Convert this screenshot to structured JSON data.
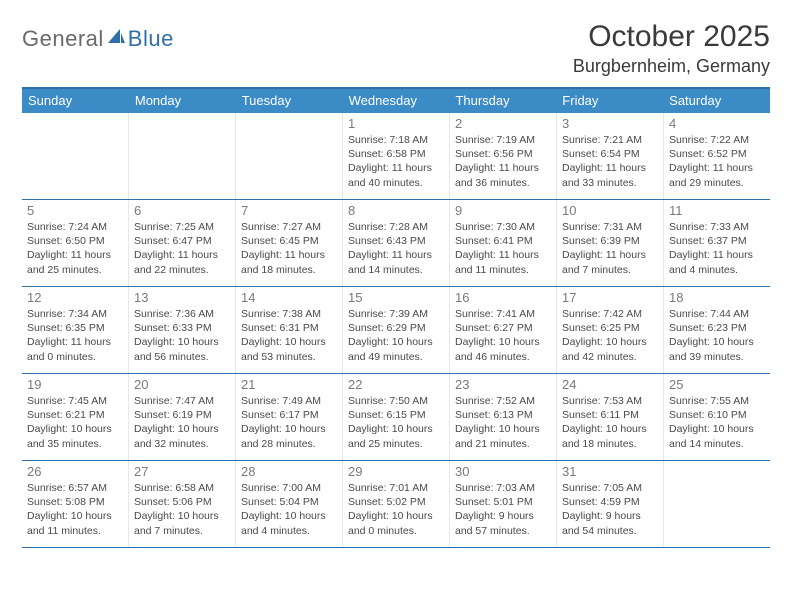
{
  "logo": {
    "part1": "General",
    "part2": "Blue"
  },
  "title": "October 2025",
  "location": "Burgbernheim, Germany",
  "colors": {
    "header_bg": "#3b8bc7",
    "header_text": "#ffffff",
    "border": "#2f6fab",
    "daynum": "#7a7a7a",
    "body_text": "#4a4a4a",
    "logo_gray": "#6a6a6a",
    "logo_blue": "#2f6fab"
  },
  "day_headers": [
    "Sunday",
    "Monday",
    "Tuesday",
    "Wednesday",
    "Thursday",
    "Friday",
    "Saturday"
  ],
  "weeks": [
    [
      null,
      null,
      null,
      {
        "n": "1",
        "sr": "Sunrise: 7:18 AM",
        "ss": "Sunset: 6:58 PM",
        "d1": "Daylight: 11 hours",
        "d2": "and 40 minutes."
      },
      {
        "n": "2",
        "sr": "Sunrise: 7:19 AM",
        "ss": "Sunset: 6:56 PM",
        "d1": "Daylight: 11 hours",
        "d2": "and 36 minutes."
      },
      {
        "n": "3",
        "sr": "Sunrise: 7:21 AM",
        "ss": "Sunset: 6:54 PM",
        "d1": "Daylight: 11 hours",
        "d2": "and 33 minutes."
      },
      {
        "n": "4",
        "sr": "Sunrise: 7:22 AM",
        "ss": "Sunset: 6:52 PM",
        "d1": "Daylight: 11 hours",
        "d2": "and 29 minutes."
      }
    ],
    [
      {
        "n": "5",
        "sr": "Sunrise: 7:24 AM",
        "ss": "Sunset: 6:50 PM",
        "d1": "Daylight: 11 hours",
        "d2": "and 25 minutes."
      },
      {
        "n": "6",
        "sr": "Sunrise: 7:25 AM",
        "ss": "Sunset: 6:47 PM",
        "d1": "Daylight: 11 hours",
        "d2": "and 22 minutes."
      },
      {
        "n": "7",
        "sr": "Sunrise: 7:27 AM",
        "ss": "Sunset: 6:45 PM",
        "d1": "Daylight: 11 hours",
        "d2": "and 18 minutes."
      },
      {
        "n": "8",
        "sr": "Sunrise: 7:28 AM",
        "ss": "Sunset: 6:43 PM",
        "d1": "Daylight: 11 hours",
        "d2": "and 14 minutes."
      },
      {
        "n": "9",
        "sr": "Sunrise: 7:30 AM",
        "ss": "Sunset: 6:41 PM",
        "d1": "Daylight: 11 hours",
        "d2": "and 11 minutes."
      },
      {
        "n": "10",
        "sr": "Sunrise: 7:31 AM",
        "ss": "Sunset: 6:39 PM",
        "d1": "Daylight: 11 hours",
        "d2": "and 7 minutes."
      },
      {
        "n": "11",
        "sr": "Sunrise: 7:33 AM",
        "ss": "Sunset: 6:37 PM",
        "d1": "Daylight: 11 hours",
        "d2": "and 4 minutes."
      }
    ],
    [
      {
        "n": "12",
        "sr": "Sunrise: 7:34 AM",
        "ss": "Sunset: 6:35 PM",
        "d1": "Daylight: 11 hours",
        "d2": "and 0 minutes."
      },
      {
        "n": "13",
        "sr": "Sunrise: 7:36 AM",
        "ss": "Sunset: 6:33 PM",
        "d1": "Daylight: 10 hours",
        "d2": "and 56 minutes."
      },
      {
        "n": "14",
        "sr": "Sunrise: 7:38 AM",
        "ss": "Sunset: 6:31 PM",
        "d1": "Daylight: 10 hours",
        "d2": "and 53 minutes."
      },
      {
        "n": "15",
        "sr": "Sunrise: 7:39 AM",
        "ss": "Sunset: 6:29 PM",
        "d1": "Daylight: 10 hours",
        "d2": "and 49 minutes."
      },
      {
        "n": "16",
        "sr": "Sunrise: 7:41 AM",
        "ss": "Sunset: 6:27 PM",
        "d1": "Daylight: 10 hours",
        "d2": "and 46 minutes."
      },
      {
        "n": "17",
        "sr": "Sunrise: 7:42 AM",
        "ss": "Sunset: 6:25 PM",
        "d1": "Daylight: 10 hours",
        "d2": "and 42 minutes."
      },
      {
        "n": "18",
        "sr": "Sunrise: 7:44 AM",
        "ss": "Sunset: 6:23 PM",
        "d1": "Daylight: 10 hours",
        "d2": "and 39 minutes."
      }
    ],
    [
      {
        "n": "19",
        "sr": "Sunrise: 7:45 AM",
        "ss": "Sunset: 6:21 PM",
        "d1": "Daylight: 10 hours",
        "d2": "and 35 minutes."
      },
      {
        "n": "20",
        "sr": "Sunrise: 7:47 AM",
        "ss": "Sunset: 6:19 PM",
        "d1": "Daylight: 10 hours",
        "d2": "and 32 minutes."
      },
      {
        "n": "21",
        "sr": "Sunrise: 7:49 AM",
        "ss": "Sunset: 6:17 PM",
        "d1": "Daylight: 10 hours",
        "d2": "and 28 minutes."
      },
      {
        "n": "22",
        "sr": "Sunrise: 7:50 AM",
        "ss": "Sunset: 6:15 PM",
        "d1": "Daylight: 10 hours",
        "d2": "and 25 minutes."
      },
      {
        "n": "23",
        "sr": "Sunrise: 7:52 AM",
        "ss": "Sunset: 6:13 PM",
        "d1": "Daylight: 10 hours",
        "d2": "and 21 minutes."
      },
      {
        "n": "24",
        "sr": "Sunrise: 7:53 AM",
        "ss": "Sunset: 6:11 PM",
        "d1": "Daylight: 10 hours",
        "d2": "and 18 minutes."
      },
      {
        "n": "25",
        "sr": "Sunrise: 7:55 AM",
        "ss": "Sunset: 6:10 PM",
        "d1": "Daylight: 10 hours",
        "d2": "and 14 minutes."
      }
    ],
    [
      {
        "n": "26",
        "sr": "Sunrise: 6:57 AM",
        "ss": "Sunset: 5:08 PM",
        "d1": "Daylight: 10 hours",
        "d2": "and 11 minutes."
      },
      {
        "n": "27",
        "sr": "Sunrise: 6:58 AM",
        "ss": "Sunset: 5:06 PM",
        "d1": "Daylight: 10 hours",
        "d2": "and 7 minutes."
      },
      {
        "n": "28",
        "sr": "Sunrise: 7:00 AM",
        "ss": "Sunset: 5:04 PM",
        "d1": "Daylight: 10 hours",
        "d2": "and 4 minutes."
      },
      {
        "n": "29",
        "sr": "Sunrise: 7:01 AM",
        "ss": "Sunset: 5:02 PM",
        "d1": "Daylight: 10 hours",
        "d2": "and 0 minutes."
      },
      {
        "n": "30",
        "sr": "Sunrise: 7:03 AM",
        "ss": "Sunset: 5:01 PM",
        "d1": "Daylight: 9 hours",
        "d2": "and 57 minutes."
      },
      {
        "n": "31",
        "sr": "Sunrise: 7:05 AM",
        "ss": "Sunset: 4:59 PM",
        "d1": "Daylight: 9 hours",
        "d2": "and 54 minutes."
      },
      null
    ]
  ]
}
